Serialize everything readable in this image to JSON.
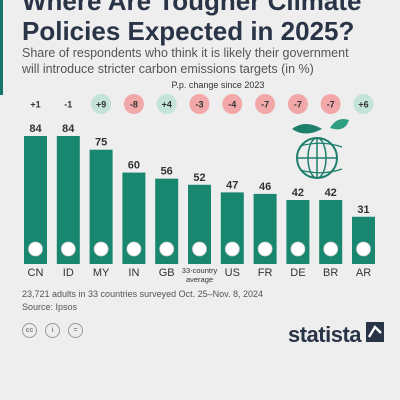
{
  "header": {
    "title": "Where Are Tougher Climate\nPolicies Expected in 2025?",
    "subtitle": "Share of respondents who think it is likely their government\nwill introduce stricter carbon emissions targets (in %)"
  },
  "chart_data": {
    "type": "bar",
    "categories": [
      "CN",
      "ID",
      "MY",
      "IN",
      "GB",
      "33-country average",
      "US",
      "FR",
      "DE",
      "BR",
      "AR"
    ],
    "values": [
      84,
      84,
      75,
      60,
      56,
      52,
      47,
      46,
      42,
      42,
      31
    ],
    "change_title": "P.p. change since 2023",
    "changes": [
      "+1",
      "-1",
      "+9",
      "-8",
      "+4",
      "-3",
      "-4",
      "-7",
      "-7",
      "-7",
      "+6"
    ],
    "ylim": [
      0,
      84
    ],
    "grid": false,
    "colors": {
      "bar": "#19866f",
      "positive_badge": "#c3e3db",
      "negative_badge": "#f2a7a8",
      "small_badge": "transparent"
    }
  },
  "icons": [
    "flag-cn-icon",
    "flag-id-icon",
    "flag-my-icon",
    "flag-in-icon",
    "flag-gb-icon",
    "average-symbol-icon",
    "flag-us-icon",
    "flag-fr-icon",
    "flag-de-icon",
    "flag-br-icon",
    "flag-ar-icon",
    "globe-leaves-icon"
  ],
  "footer": {
    "note": "23,721 adults in 33 countries surveyed Oct. 25–Nov. 8, 2024",
    "source": "Source: Ipsos",
    "brand": "statista"
  }
}
